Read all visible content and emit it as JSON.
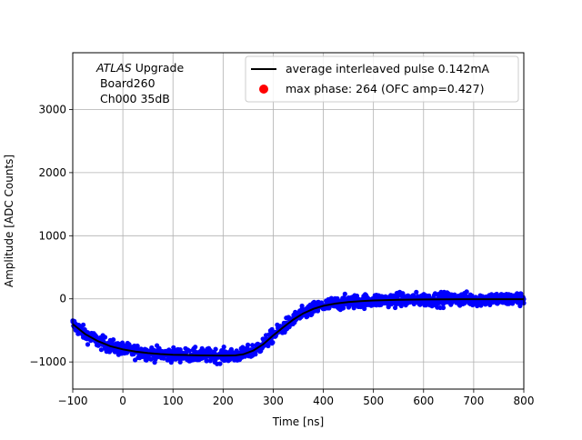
{
  "chart_data": {
    "type": "scatter",
    "title": "",
    "xlabel": "Time [ns]",
    "ylabel": "Amplitude [ADC Counts]",
    "xlim": [
      -100,
      800
    ],
    "ylim": [
      -1430,
      3900
    ],
    "grid": true,
    "legend_position": "upper-right",
    "x_ticks": [
      -100,
      0,
      100,
      200,
      300,
      400,
      500,
      600,
      700,
      800
    ],
    "y_ticks": [
      -1000,
      0,
      1000,
      2000,
      3000
    ],
    "annotation": {
      "line1_italic": "ATLAS",
      "line1_rest": " Upgrade",
      "line2": " Board260",
      "line3": " Ch000 35dB"
    },
    "series": [
      {
        "name": "average interleaved pulse 0.142mA",
        "kind": "line",
        "color": "#000000",
        "x": [
          -100,
          -75,
          -50,
          -25,
          0,
          25,
          50,
          75,
          100,
          125,
          150,
          175,
          200,
          225,
          240,
          260,
          280,
          300,
          320,
          340,
          360,
          380,
          400,
          425,
          450,
          475,
          500,
          550,
          600,
          650,
          700,
          750,
          800
        ],
        "y": [
          -400,
          -560,
          -670,
          -750,
          -800,
          -835,
          -860,
          -875,
          -885,
          -890,
          -895,
          -897,
          -898,
          -895,
          -880,
          -820,
          -720,
          -580,
          -450,
          -330,
          -230,
          -160,
          -110,
          -75,
          -50,
          -35,
          -25,
          -15,
          -10,
          -7,
          -5,
          -5,
          -5
        ]
      },
      {
        "name": "max phase: 264 (OFC amp=0.427)",
        "kind": "scatter",
        "color": "#0000ff",
        "noise": 90
      }
    ],
    "marker": {
      "name": "max phase: 264 (OFC amp=0.427)",
      "color": "#ff0000",
      "x": 264
    }
  }
}
